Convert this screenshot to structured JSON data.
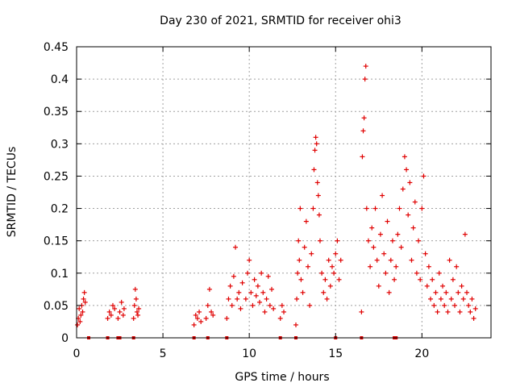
{
  "chart_data": {
    "type": "scatter",
    "title": "Day 230 of 2021, SRMTID for receiver ohi3",
    "xlabel": "GPS time / hours",
    "ylabel": "SRMTID / TECUs",
    "xlim": [
      0,
      24
    ],
    "ylim": [
      0,
      0.45
    ],
    "xticks": [
      0,
      5,
      10,
      15,
      20
    ],
    "xtick_labels": [
      "0",
      "5",
      "10",
      "15",
      "20"
    ],
    "yticks": [
      0,
      0.05,
      0.1,
      0.15,
      0.2,
      0.25,
      0.3,
      0.35,
      0.4,
      0.45
    ],
    "ytick_labels": [
      "0",
      "0.05",
      "0.1",
      "0.15",
      "0.2",
      "0.25",
      "0.3",
      "0.35",
      "0.4",
      "0.45"
    ],
    "grid": true,
    "marker": "+",
    "color": "#e00000",
    "series": [
      {
        "name": "SRMTID",
        "points": [
          [
            0.05,
            0.02
          ],
          [
            0.1,
            0.03
          ],
          [
            0.15,
            0.045
          ],
          [
            0.2,
            0.025
          ],
          [
            0.25,
            0.035
          ],
          [
            0.3,
            0.05
          ],
          [
            0.35,
            0.04
          ],
          [
            0.4,
            0.06
          ],
          [
            0.45,
            0.07
          ],
          [
            0.5,
            0.055
          ],
          [
            1.8,
            0.03
          ],
          [
            1.9,
            0.04
          ],
          [
            2.0,
            0.035
          ],
          [
            2.1,
            0.05
          ],
          [
            2.2,
            0.045
          ],
          [
            2.4,
            0.03
          ],
          [
            2.5,
            0.04
          ],
          [
            2.6,
            0.055
          ],
          [
            2.7,
            0.035
          ],
          [
            2.75,
            0.045
          ],
          [
            3.3,
            0.03
          ],
          [
            3.35,
            0.05
          ],
          [
            3.4,
            0.075
          ],
          [
            3.45,
            0.06
          ],
          [
            3.5,
            0.04
          ],
          [
            3.55,
            0.035
          ],
          [
            3.6,
            0.045
          ],
          [
            6.8,
            0.02
          ],
          [
            6.9,
            0.035
          ],
          [
            7.0,
            0.03
          ],
          [
            7.1,
            0.04
          ],
          [
            7.2,
            0.025
          ],
          [
            7.5,
            0.03
          ],
          [
            7.6,
            0.05
          ],
          [
            7.7,
            0.075
          ],
          [
            7.8,
            0.04
          ],
          [
            7.9,
            0.035
          ],
          [
            8.7,
            0.03
          ],
          [
            8.8,
            0.06
          ],
          [
            8.9,
            0.08
          ],
          [
            9.0,
            0.05
          ],
          [
            9.1,
            0.095
          ],
          [
            9.2,
            0.14
          ],
          [
            9.3,
            0.06
          ],
          [
            9.4,
            0.07
          ],
          [
            9.5,
            0.045
          ],
          [
            9.6,
            0.085
          ],
          [
            9.8,
            0.06
          ],
          [
            9.9,
            0.1
          ],
          [
            10.0,
            0.12
          ],
          [
            10.1,
            0.07
          ],
          [
            10.2,
            0.05
          ],
          [
            10.3,
            0.09
          ],
          [
            10.4,
            0.065
          ],
          [
            10.5,
            0.08
          ],
          [
            10.6,
            0.055
          ],
          [
            10.7,
            0.1
          ],
          [
            10.8,
            0.07
          ],
          [
            10.9,
            0.04
          ],
          [
            11.0,
            0.06
          ],
          [
            11.1,
            0.095
          ],
          [
            11.2,
            0.05
          ],
          [
            11.3,
            0.075
          ],
          [
            11.4,
            0.045
          ],
          [
            11.8,
            0.03
          ],
          [
            11.9,
            0.05
          ],
          [
            12.0,
            0.04
          ],
          [
            12.7,
            0.02
          ],
          [
            12.75,
            0.06
          ],
          [
            12.8,
            0.1
          ],
          [
            12.85,
            0.15
          ],
          [
            12.9,
            0.12
          ],
          [
            12.95,
            0.2
          ],
          [
            13.0,
            0.09
          ],
          [
            13.1,
            0.07
          ],
          [
            13.2,
            0.14
          ],
          [
            13.3,
            0.18
          ],
          [
            13.4,
            0.11
          ],
          [
            13.5,
            0.05
          ],
          [
            13.6,
            0.13
          ],
          [
            13.7,
            0.2
          ],
          [
            13.75,
            0.26
          ],
          [
            13.8,
            0.29
          ],
          [
            13.85,
            0.31
          ],
          [
            13.9,
            0.3
          ],
          [
            13.95,
            0.24
          ],
          [
            14.0,
            0.22
          ],
          [
            14.05,
            0.19
          ],
          [
            14.1,
            0.15
          ],
          [
            14.2,
            0.1
          ],
          [
            14.3,
            0.07
          ],
          [
            14.4,
            0.09
          ],
          [
            14.5,
            0.06
          ],
          [
            14.6,
            0.12
          ],
          [
            14.7,
            0.08
          ],
          [
            14.8,
            0.11
          ],
          [
            14.9,
            0.1
          ],
          [
            15.0,
            0.13
          ],
          [
            15.1,
            0.15
          ],
          [
            15.2,
            0.09
          ],
          [
            15.3,
            0.12
          ],
          [
            16.5,
            0.04
          ],
          [
            16.55,
            0.28
          ],
          [
            16.6,
            0.32
          ],
          [
            16.65,
            0.34
          ],
          [
            16.7,
            0.4
          ],
          [
            16.75,
            0.42
          ],
          [
            16.8,
            0.2
          ],
          [
            16.9,
            0.15
          ],
          [
            17.0,
            0.11
          ],
          [
            17.1,
            0.17
          ],
          [
            17.2,
            0.14
          ],
          [
            17.3,
            0.2
          ],
          [
            17.4,
            0.12
          ],
          [
            17.5,
            0.08
          ],
          [
            17.6,
            0.16
          ],
          [
            17.7,
            0.22
          ],
          [
            17.8,
            0.13
          ],
          [
            17.9,
            0.1
          ],
          [
            18.0,
            0.18
          ],
          [
            18.1,
            0.07
          ],
          [
            18.2,
            0.12
          ],
          [
            18.3,
            0.15
          ],
          [
            18.4,
            0.09
          ],
          [
            18.5,
            0.11
          ],
          [
            18.6,
            0.16
          ],
          [
            18.7,
            0.2
          ],
          [
            18.8,
            0.14
          ],
          [
            18.9,
            0.23
          ],
          [
            19.0,
            0.28
          ],
          [
            19.1,
            0.26
          ],
          [
            19.2,
            0.19
          ],
          [
            19.3,
            0.24
          ],
          [
            19.4,
            0.12
          ],
          [
            19.5,
            0.17
          ],
          [
            19.6,
            0.21
          ],
          [
            19.7,
            0.1
          ],
          [
            19.8,
            0.15
          ],
          [
            19.9,
            0.09
          ],
          [
            20.0,
            0.2
          ],
          [
            20.1,
            0.25
          ],
          [
            20.2,
            0.13
          ],
          [
            20.3,
            0.08
          ],
          [
            20.4,
            0.11
          ],
          [
            20.5,
            0.06
          ],
          [
            20.6,
            0.09
          ],
          [
            20.7,
            0.05
          ],
          [
            20.8,
            0.07
          ],
          [
            20.9,
            0.04
          ],
          [
            21.0,
            0.1
          ],
          [
            21.1,
            0.06
          ],
          [
            21.2,
            0.08
          ],
          [
            21.3,
            0.05
          ],
          [
            21.4,
            0.07
          ],
          [
            21.5,
            0.04
          ],
          [
            21.6,
            0.12
          ],
          [
            21.7,
            0.06
          ],
          [
            21.8,
            0.09
          ],
          [
            21.9,
            0.05
          ],
          [
            22.0,
            0.11
          ],
          [
            22.1,
            0.07
          ],
          [
            22.2,
            0.04
          ],
          [
            22.3,
            0.08
          ],
          [
            22.4,
            0.06
          ],
          [
            22.5,
            0.16
          ],
          [
            22.6,
            0.07
          ],
          [
            22.7,
            0.05
          ],
          [
            22.8,
            0.04
          ],
          [
            22.9,
            0.06
          ],
          [
            23.0,
            0.03
          ],
          [
            23.1,
            0.045
          ]
        ]
      }
    ],
    "gap_markers_x": [
      0.7,
      1.8,
      2.4,
      2.5,
      3.3,
      6.8,
      7.6,
      8.7,
      11.8,
      12.7,
      15.0,
      16.5,
      18.4,
      18.5
    ]
  }
}
